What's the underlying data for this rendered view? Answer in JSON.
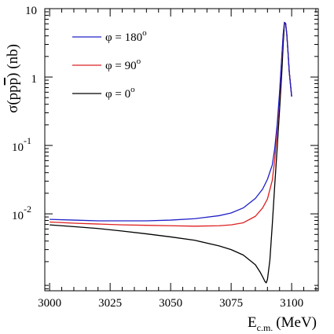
{
  "chart_data": {
    "type": "line",
    "xlabel": {
      "main": "E",
      "sub": "c.m.",
      "unit": "(MeV)"
    },
    "ylabel": {
      "sigma": "σ",
      "inner": "(pp",
      "bar": "p",
      "tail": ") (nb)"
    },
    "x_ticks": [
      "3000",
      "3025",
      "3050",
      "3075",
      "3100"
    ],
    "y_ticks": [
      {
        "value": 10,
        "base": "10",
        "exp": ""
      },
      {
        "value": 1,
        "base": "1",
        "exp": ""
      },
      {
        "value": 0.1,
        "base": "10",
        "exp": "-1"
      },
      {
        "value": 0.01,
        "base": "10",
        "exp": "-2"
      }
    ],
    "xlim": [
      2998,
      3111
    ],
    "ylim": [
      0.00075,
      10
    ],
    "yscale": "log",
    "grid": false,
    "legend_position": "top-left",
    "series": [
      {
        "name": "φ = 180",
        "name_sup": "o",
        "color": "#2020c8",
        "x": [
          3000,
          3010,
          3020,
          3030,
          3040,
          3050,
          3060,
          3070,
          3075,
          3080,
          3085,
          3088,
          3090,
          3092,
          3093,
          3094,
          3095,
          3096,
          3096.5,
          3097,
          3097.5,
          3098,
          3098.5,
          3099,
          3100
        ],
        "y": [
          0.0083,
          0.0081,
          0.0079,
          0.0079,
          0.0079,
          0.0081,
          0.0085,
          0.0094,
          0.0103,
          0.0122,
          0.0168,
          0.023,
          0.032,
          0.052,
          0.09,
          0.2,
          0.6,
          2.2,
          4.2,
          6.3,
          6.1,
          4.2,
          2.3,
          1.2,
          0.52
        ]
      },
      {
        "name": "φ = 90",
        "name_sup": "o",
        "color": "#dd2020",
        "x": [
          3000,
          3010,
          3020,
          3030,
          3040,
          3050,
          3060,
          3070,
          3075,
          3080,
          3085,
          3088,
          3090,
          3092,
          3093,
          3094,
          3095,
          3096,
          3096.5,
          3097,
          3097.5,
          3098,
          3098.5,
          3099,
          3100
        ],
        "y": [
          0.0076,
          0.0073,
          0.0071,
          0.0069,
          0.0068,
          0.0067,
          0.0066,
          0.0067,
          0.0069,
          0.0074,
          0.0092,
          0.0122,
          0.0165,
          0.031,
          0.062,
          0.17,
          0.55,
          2.1,
          4.1,
          6.3,
          6.1,
          4.2,
          2.3,
          1.2,
          0.52
        ]
      },
      {
        "name": "φ = 0",
        "name_sup": "o",
        "color": "#000000",
        "x": [
          3000,
          3010,
          3020,
          3030,
          3040,
          3050,
          3060,
          3070,
          3075,
          3080,
          3085,
          3087,
          3088,
          3089,
          3089.5,
          3090,
          3091,
          3092,
          3093,
          3094,
          3095,
          3096,
          3096.5,
          3097,
          3097.5,
          3098,
          3098.5,
          3099,
          3100
        ],
        "y": [
          0.0069,
          0.0065,
          0.0061,
          0.0056,
          0.0051,
          0.0046,
          0.0041,
          0.0034,
          0.003,
          0.0025,
          0.0018,
          0.0014,
          0.0012,
          0.00102,
          0.00098,
          0.0011,
          0.0021,
          0.007,
          0.026,
          0.09,
          0.33,
          1.3,
          3.0,
          5.9,
          6.1,
          4.2,
          2.3,
          1.2,
          0.52
        ]
      }
    ]
  }
}
